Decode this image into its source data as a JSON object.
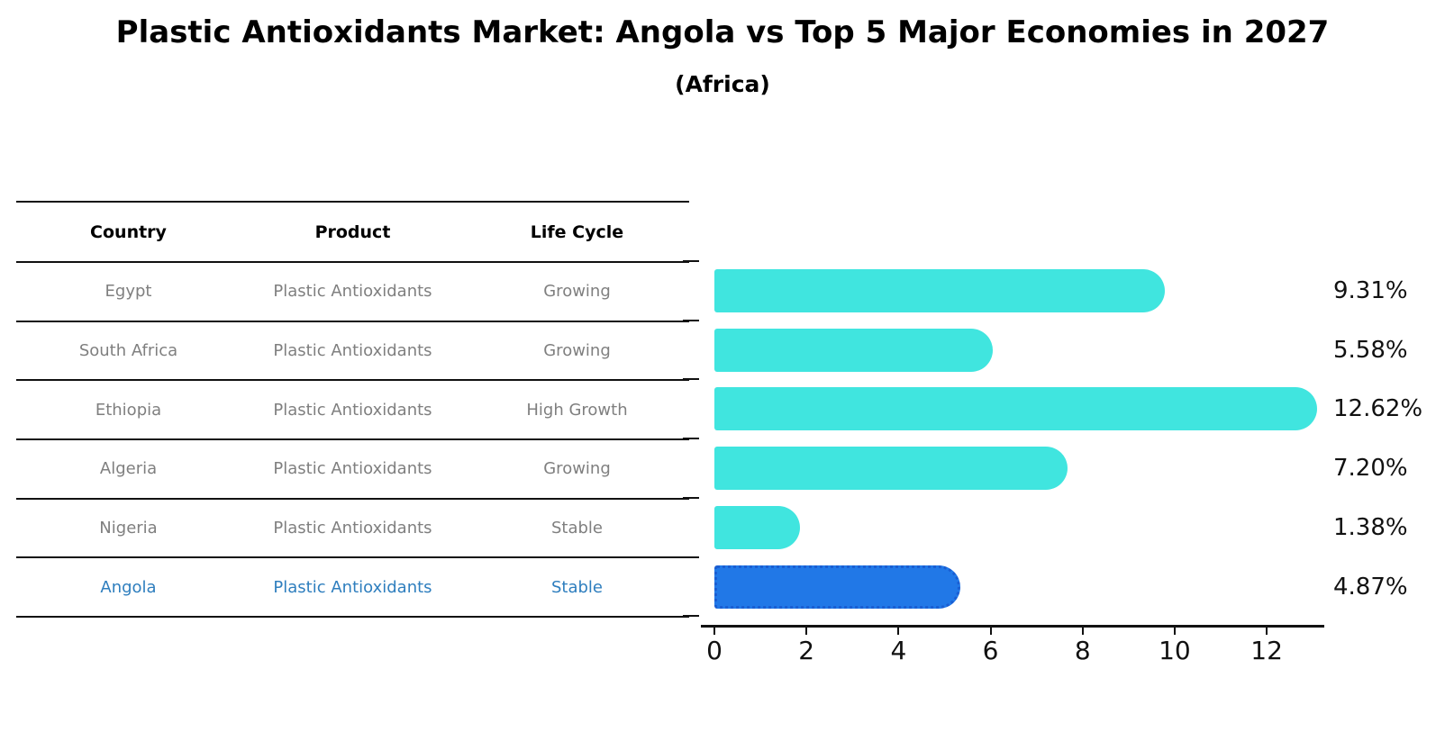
{
  "title": "Plastic Antioxidants Market: Angola vs Top 5 Major Economies in 2027",
  "subtitle": "(Africa)",
  "colors": {
    "bar_default": "#40E5DF",
    "bar_highlight": "#2178E7",
    "bar_highlight_border": "#1a5ed2",
    "highlight_text": "#2e7ebe",
    "row_text": "#7f7f7f",
    "axis": "#111111"
  },
  "table": {
    "headers": [
      "Country",
      "Product",
      "Life Cycle"
    ],
    "rows": [
      {
        "country": "Egypt",
        "product": "Plastic Antioxidants",
        "life_cycle": "Growing",
        "highlight": false
      },
      {
        "country": "South Africa",
        "product": "Plastic Antioxidants",
        "life_cycle": "Growing",
        "highlight": false
      },
      {
        "country": "Ethiopia",
        "product": "Plastic Antioxidants",
        "life_cycle": "High Growth",
        "highlight": false
      },
      {
        "country": "Algeria",
        "product": "Plastic Antioxidants",
        "life_cycle": "Growing",
        "highlight": false
      },
      {
        "country": "Nigeria",
        "product": "Plastic Antioxidants",
        "life_cycle": "Stable",
        "highlight": false
      },
      {
        "country": "Angola",
        "product": "Plastic Antioxidants",
        "life_cycle": "Stable",
        "highlight": true
      }
    ]
  },
  "chart_data": {
    "type": "bar",
    "orientation": "horizontal",
    "title": "Plastic Antioxidants Market: Angola vs Top 5 Major Economies in 2027 (Africa)",
    "categories": [
      "Egypt",
      "South Africa",
      "Ethiopia",
      "Algeria",
      "Nigeria",
      "Angola"
    ],
    "values": [
      9.31,
      5.58,
      12.62,
      7.2,
      1.38,
      4.87
    ],
    "value_labels": [
      "9.31%",
      "5.58%",
      "12.62%",
      "7.20%",
      "1.38%",
      "4.87%"
    ],
    "highlight_index": 5,
    "x_ticks": [
      "0",
      "2",
      "4",
      "6",
      "8",
      "10",
      "12"
    ],
    "x_tick_values": [
      0,
      2,
      4,
      6,
      8,
      10,
      12
    ],
    "xlim": [
      0,
      13.25
    ],
    "xlabel": "",
    "ylabel": "",
    "grid": false,
    "legend": false
  }
}
